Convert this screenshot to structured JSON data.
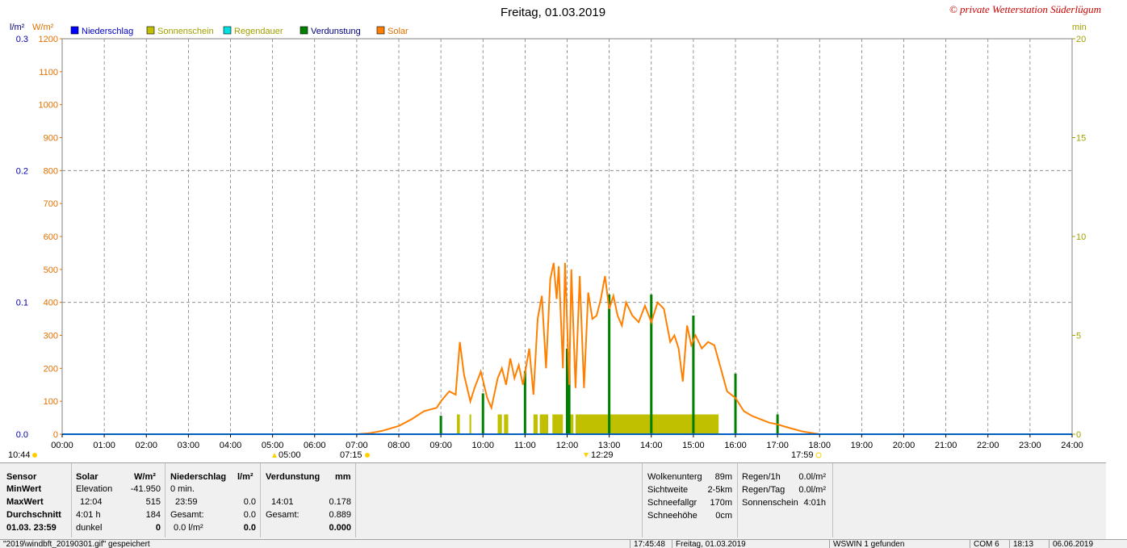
{
  "title": "Freitag, 01.03.2019",
  "credit": "© private Wetterstation Süderlügum",
  "axes": {
    "left1_unit": "l/m²",
    "left2_unit": "W/m²",
    "right_unit": "min"
  },
  "legend": [
    {
      "label": "Niederschlag",
      "color": "#0000ff",
      "text_color": "#0000cc"
    },
    {
      "label": "Sonnenschein",
      "color": "#c0c000",
      "text_color": "#a0a000"
    },
    {
      "label": "Regendauer",
      "color": "#00e0e0",
      "text_color": "#a0a000"
    },
    {
      "label": "Verdunstung",
      "color": "#008000",
      "text_color": "#000080"
    },
    {
      "label": "Solar",
      "color": "#ff8000",
      "text_color": "#e07000"
    }
  ],
  "markers": {
    "left_time": "10:44",
    "sunrise": "07:15",
    "moon_rise": "05:00",
    "moon_set": "12:29",
    "sunset": "17:59"
  },
  "chart_data": {
    "type": "line",
    "x_range_hours": [
      0,
      24
    ],
    "x_ticks": [
      "00:00",
      "01:00",
      "02:00",
      "03:00",
      "04:00",
      "05:00",
      "06:00",
      "07:00",
      "08:00",
      "09:00",
      "10:00",
      "11:00",
      "12:00",
      "13:00",
      "14:00",
      "15:00",
      "16:00",
      "17:00",
      "18:00",
      "19:00",
      "20:00",
      "21:00",
      "22:00",
      "23:00",
      "24:00"
    ],
    "y_precip": {
      "unit": "l/m²",
      "range": [
        0,
        0.3
      ],
      "ticks": [
        "0.0",
        "0.1",
        "0.2",
        "0.3"
      ],
      "tick_values": [
        0,
        0.1,
        0.2,
        0.3
      ]
    },
    "y_solar": {
      "unit": "W/m²",
      "range": [
        0,
        1200
      ],
      "ticks": [
        "0",
        "100",
        "200",
        "300",
        "400",
        "500",
        "600",
        "700",
        "800",
        "900",
        "1000",
        "1100",
        "1200"
      ]
    },
    "y_min": {
      "unit": "min",
      "range": [
        0,
        20
      ],
      "ticks": [
        "0",
        "5",
        "10",
        "15",
        "20"
      ]
    },
    "grid": true,
    "series": [
      {
        "name": "Solar",
        "color": "#ff8000",
        "x": [
          7.0,
          7.3,
          7.6,
          8.0,
          8.3,
          8.6,
          8.9,
          9.0,
          9.2,
          9.35,
          9.45,
          9.55,
          9.7,
          9.8,
          9.95,
          10.1,
          10.2,
          10.35,
          10.45,
          10.55,
          10.65,
          10.75,
          10.85,
          10.95,
          11.1,
          11.2,
          11.3,
          11.4,
          11.5,
          11.6,
          11.68,
          11.75,
          11.8,
          11.9,
          11.95,
          12.05,
          12.1,
          12.2,
          12.3,
          12.4,
          12.5,
          12.6,
          12.7,
          12.8,
          12.9,
          13.0,
          13.1,
          13.2,
          13.3,
          13.4,
          13.55,
          13.7,
          13.85,
          14.0,
          14.15,
          14.3,
          14.45,
          14.55,
          14.65,
          14.75,
          14.85,
          14.95,
          15.05,
          15.2,
          15.35,
          15.5,
          15.65,
          15.8,
          16.0,
          16.2,
          16.4,
          16.6,
          16.8,
          17.0,
          17.2,
          17.4,
          17.6,
          17.8,
          18.0
        ],
        "values": [
          0,
          3,
          10,
          25,
          45,
          70,
          80,
          100,
          130,
          120,
          280,
          180,
          100,
          140,
          190,
          110,
          80,
          170,
          200,
          150,
          230,
          170,
          210,
          150,
          260,
          120,
          350,
          420,
          200,
          470,
          520,
          410,
          510,
          200,
          520,
          150,
          500,
          140,
          480,
          140,
          430,
          350,
          360,
          410,
          480,
          380,
          420,
          360,
          330,
          400,
          360,
          340,
          390,
          340,
          400,
          380,
          280,
          300,
          260,
          160,
          330,
          270,
          300,
          260,
          280,
          270,
          200,
          130,
          110,
          70,
          55,
          45,
          35,
          30,
          22,
          15,
          8,
          4,
          0
        ]
      },
      {
        "name": "Sonnenschein",
        "color": "#c0c000",
        "bars": [
          [
            9.38,
            9.45
          ],
          [
            9.68,
            9.72
          ],
          [
            10.35,
            10.45
          ],
          [
            10.5,
            10.6
          ],
          [
            11.2,
            11.3
          ],
          [
            11.35,
            11.55
          ],
          [
            11.65,
            11.9
          ],
          [
            12.05,
            12.15
          ],
          [
            12.2,
            15.6
          ]
        ],
        "value_min": 1
      }
    ],
    "verdunstung": {
      "color": "#008000",
      "spikes_hours": [
        9.0,
        10.0,
        11.0,
        12.0,
        12.05,
        13.0,
        14.0,
        15.0,
        16.0,
        17.0
      ],
      "spikes_values_l": [
        0.014,
        0.031,
        0.048,
        0.065,
        0.062,
        0.106,
        0.106,
        0.09,
        0.046,
        0.015
      ]
    }
  },
  "stats": {
    "sensor_label": "Sensor",
    "minwert_label": "MinWert",
    "maxwert_label": "MaxWert",
    "durchschnitt_label": "Durchschnitt",
    "date_label": "01.03. 23:59",
    "solar_header": "Solar",
    "solar_unit": "W/m²",
    "solar_min_name": "Elevation",
    "solar_min_value": "-41.950",
    "solar_max_time": "12:04",
    "solar_max_value": "515",
    "solar_avg_name": "4:01 h",
    "solar_avg_value": "184",
    "solar_last_name": "dunkel",
    "solar_last_value": "0",
    "precip_header": "Niederschlag",
    "precip_unit": "l/m²",
    "precip_min_name": "0 min.",
    "precip_max_time": "23:59",
    "precip_max_value": "0.0",
    "precip_avg_name": "Gesamt:",
    "precip_avg_value": "0.0",
    "precip_last_name": "0.0 l/m²",
    "precip_last_value": "0.0",
    "evap_header": "Verdunstung",
    "evap_unit": "mm",
    "evap_max_time": "14:01",
    "evap_max_value": "0.178",
    "evap_avg_name": "Gesamt:",
    "evap_avg_value": "0.889",
    "evap_last_value": "0.000",
    "cloud_label": "Wolkenunterg",
    "cloud_value": "89m",
    "vis_label": "Sichtweite",
    "vis_value": "2-5km",
    "snowfall_label": "Schneefallgr",
    "snowfall_value": "170m",
    "snowheight_label": "Schneehöhe",
    "snowheight_value": "0cm",
    "rain1h_label": "Regen/1h",
    "rain1h_value": "0.0l/m²",
    "rainday_label": "Regen/Tag",
    "rainday_value": "0.0l/m²",
    "sun_label": "Sonnenschein",
    "sun_value": "4:01h"
  },
  "statusbar": {
    "file": "\"2019\\windbft_20190301.gif\" gespeichert",
    "time": "17:45:48",
    "date": "Freitag, 01.03.2019",
    "found": "WSWIN 1 gefunden",
    "com": "COM 6",
    "clock": "18:13",
    "today": "06.06.2019"
  }
}
